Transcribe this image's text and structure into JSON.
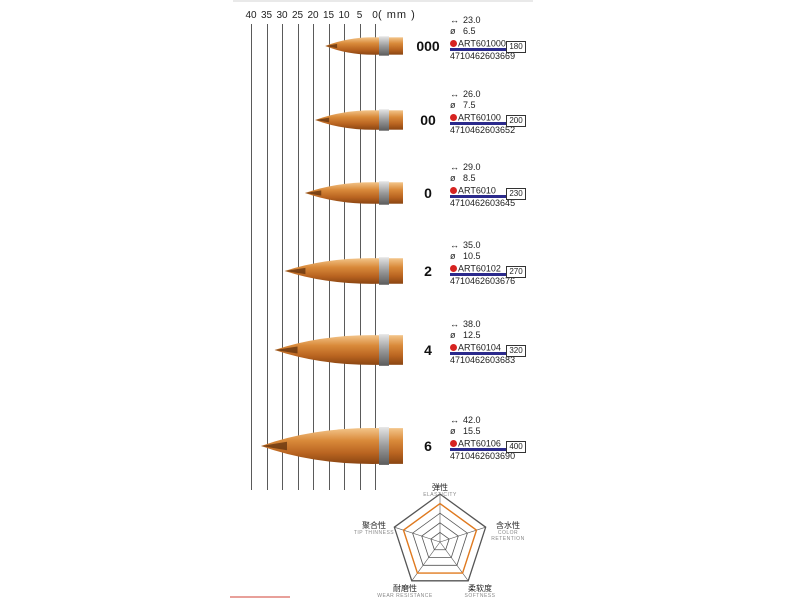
{
  "ruler": {
    "unit_label": "( mm )",
    "ticks": [
      "40",
      "35",
      "30",
      "25",
      "20",
      "15",
      "10",
      "5",
      "0"
    ]
  },
  "brushes": [
    {
      "size": "000",
      "length": "23.0",
      "diameter": "6.5",
      "code": "ART601000",
      "price": "180",
      "barcode": "4710462603669"
    },
    {
      "size": "00",
      "length": "26.0",
      "diameter": "7.5",
      "code": "ART60100",
      "price": "200",
      "barcode": "4710462603652"
    },
    {
      "size": "0",
      "length": "29.0",
      "diameter": "8.5",
      "code": "ART6010",
      "price": "230",
      "barcode": "4710462603645"
    },
    {
      "size": "2",
      "length": "35.0",
      "diameter": "10.5",
      "code": "ART60102",
      "price": "270",
      "barcode": "4710462603676"
    },
    {
      "size": "4",
      "length": "38.0",
      "diameter": "12.5",
      "code": "ART60104",
      "price": "320",
      "barcode": "4710462603683"
    },
    {
      "size": "6",
      "length": "42.0",
      "diameter": "15.5",
      "code": "ART60106",
      "price": "400",
      "barcode": "4710462603690"
    }
  ],
  "symbols": {
    "length": "↔",
    "diameter": "ø"
  },
  "radar": {
    "axes": [
      {
        "cn": "弹性",
        "en": "ELASTICITY"
      },
      {
        "cn": "含水性",
        "en": "COLOR RETENTION"
      },
      {
        "cn": "柔软度",
        "en": "SOFTNESS"
      },
      {
        "cn": "耐磨性",
        "en": "WEAR RESISTANCE"
      },
      {
        "cn": "聚合性",
        "en": "TIP THINNESS"
      }
    ],
    "levels": 5,
    "values": [
      4,
      4,
      4,
      4,
      4
    ],
    "colors": {
      "grid": "#555555",
      "series": "#e07a1f"
    }
  }
}
